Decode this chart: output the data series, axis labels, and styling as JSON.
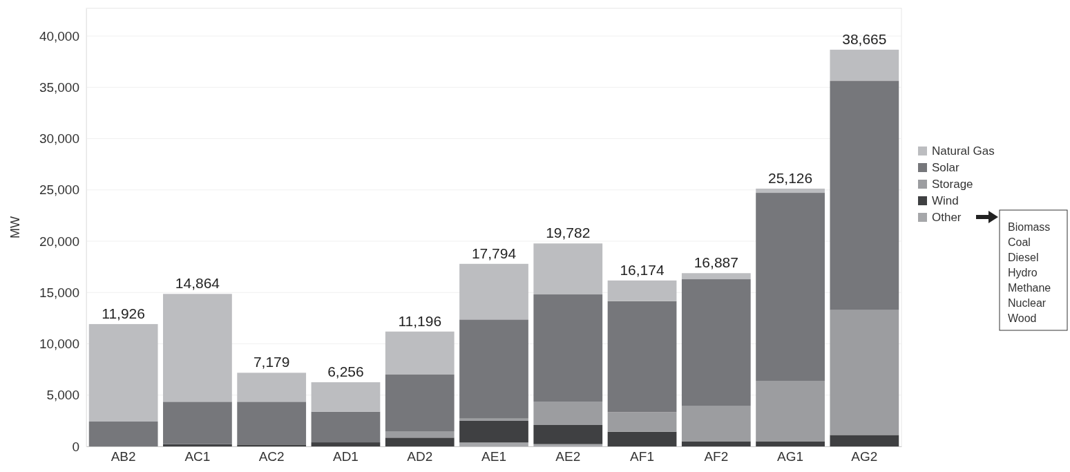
{
  "chart_data": {
    "type": "bar",
    "stacked": true,
    "ylabel": "MW",
    "categories": [
      "AB2",
      "AC1",
      "AC2",
      "AD1",
      "AD2",
      "AE1",
      "AE2",
      "AF1",
      "AF2",
      "AG1",
      "AG2"
    ],
    "series": [
      {
        "name": "Other",
        "color": "#a6a7aa",
        "values": [
          0,
          0,
          0,
          0,
          0,
          380,
          225,
          0,
          0,
          0,
          0
        ]
      },
      {
        "name": "Wind",
        "color": "#3f4042",
        "values": [
          0,
          220,
          180,
          400,
          855,
          2112,
          1863,
          1434,
          505,
          505,
          1118
        ]
      },
      {
        "name": "Storage",
        "color": "#9c9da0",
        "values": [
          0,
          0,
          0,
          0,
          626,
          222,
          2289,
          1913,
          3468,
          5892,
          12175
        ]
      },
      {
        "name": "Solar",
        "color": "#76777b",
        "values": [
          2424,
          4137,
          4177,
          2987,
          5522,
          9656,
          10438,
          10815,
          12323,
          18317,
          22330
        ]
      },
      {
        "name": "Natural Gas",
        "color": "#bcbdc0",
        "values": [
          9502,
          10507,
          2822,
          2869,
          4193,
          5424,
          4967,
          2012,
          591,
          412,
          3042
        ]
      }
    ],
    "totals": [
      "11,926",
      "14,864",
      "7,179",
      "6,256",
      "11,196",
      "17,794",
      "19,782",
      "16,174",
      "16,887",
      "25,126",
      "38,665"
    ],
    "ylim": [
      0,
      42700
    ],
    "yticks": [
      {
        "value": 0,
        "label": "0"
      },
      {
        "value": 5000,
        "label": "5,000"
      },
      {
        "value": 10000,
        "label": "10,000"
      },
      {
        "value": 15000,
        "label": "15,000"
      },
      {
        "value": 20000,
        "label": "20,000"
      },
      {
        "value": 25000,
        "label": "25,000"
      },
      {
        "value": 30000,
        "label": "30,000"
      },
      {
        "value": 35000,
        "label": "35,000"
      },
      {
        "value": 40000,
        "label": "40,000"
      }
    ],
    "grid": "y",
    "legend": "right",
    "annotations": [
      "Biomass",
      "Coal",
      "Diesel",
      "Hydro",
      "Methane",
      "Nuclear",
      "Wood"
    ]
  }
}
